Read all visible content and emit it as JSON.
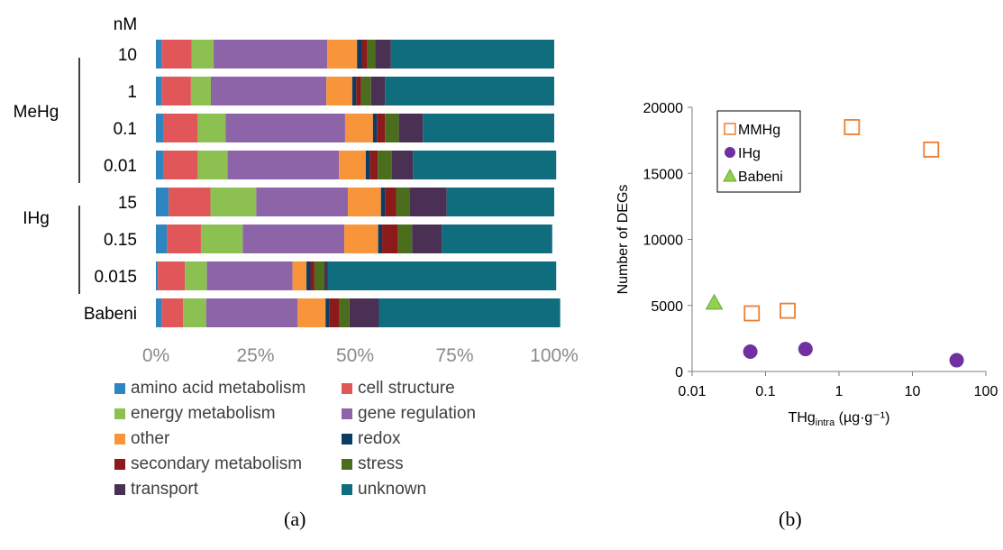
{
  "panels": {
    "a_label": "(a)",
    "b_label": "(b)"
  },
  "chart_data": [
    {
      "type": "bar",
      "orientation": "horizontal",
      "stacked": true,
      "percent": true,
      "unit_label": "nM",
      "groups": [
        {
          "name": "MeHg",
          "rows": [
            0,
            1,
            2,
            3
          ]
        },
        {
          "name": "IHg",
          "rows": [
            4,
            5,
            6
          ]
        }
      ],
      "categories": [
        "10",
        "1",
        "0.1",
        "0.01",
        "15",
        "0.15",
        "0.015",
        "Babeni"
      ],
      "xlim": [
        0,
        100
      ],
      "xticks": [
        "0%",
        "25%",
        "50%",
        "75%",
        "100%"
      ],
      "legend_position": "bottom",
      "series": [
        {
          "name": "amino acid metabolism",
          "color": "#2e86c1",
          "values": [
            1.5,
            1.5,
            2.0,
            2.0,
            3.2,
            2.8,
            0.5,
            1.5
          ]
        },
        {
          "name": "cell structure",
          "color": "#e15759",
          "values": [
            7.5,
            7.3,
            8.5,
            8.5,
            10.5,
            8.5,
            6.8,
            5.3
          ]
        },
        {
          "name": "energy metabolism",
          "color": "#8cc152",
          "values": [
            5.5,
            5.0,
            7.0,
            7.5,
            11.5,
            10.5,
            5.5,
            5.8
          ]
        },
        {
          "name": "gene regulation",
          "color": "#8e64a8",
          "values": [
            28.5,
            29.0,
            30.0,
            28.0,
            23.0,
            25.5,
            21.5,
            23.0
          ]
        },
        {
          "name": "other",
          "color": "#f8953b",
          "values": [
            7.5,
            6.5,
            7.0,
            6.7,
            8.3,
            8.5,
            3.5,
            7.0
          ]
        },
        {
          "name": "redox",
          "color": "#0c3c63",
          "values": [
            1.2,
            1.0,
            1.0,
            1.0,
            1.0,
            1.0,
            1.0,
            1.0
          ]
        },
        {
          "name": "secondary metabolism",
          "color": "#8b1a1a",
          "values": [
            1.4,
            1.2,
            2.0,
            2.0,
            2.8,
            4.0,
            1.0,
            2.5
          ]
        },
        {
          "name": "stress",
          "color": "#4b6e1d",
          "values": [
            2.0,
            2.5,
            3.5,
            3.5,
            3.5,
            3.5,
            2.5,
            2.5
          ]
        },
        {
          "name": "transport",
          "color": "#4a3053",
          "values": [
            3.9,
            3.5,
            6.0,
            5.3,
            9.2,
            7.5,
            0.9,
            7.4
          ]
        },
        {
          "name": "unknown",
          "color": "#0f6d7e",
          "values": [
            41.0,
            42.5,
            33.0,
            36.0,
            27.0,
            27.7,
            57.3,
            45.5
          ]
        }
      ]
    },
    {
      "type": "scatter",
      "xscale": "log",
      "xlim": [
        0.01,
        100
      ],
      "ylim": [
        0,
        20000
      ],
      "xticks": [
        "0.01",
        "0.1",
        "1",
        "10",
        "100"
      ],
      "yticks": [
        "0",
        "5000",
        "10000",
        "15000",
        "20000"
      ],
      "ylabel": "Number of DEGs",
      "xlabel_main": "THg",
      "xlabel_sub": "intra",
      "xlabel_unit": " (µg·g⁻¹)",
      "legend_position": "top-left",
      "series": [
        {
          "name": "MMHg",
          "marker": "square",
          "color": "#ed7d31",
          "filled": false,
          "x": [
            0.065,
            0.2,
            1.5,
            18
          ],
          "y": [
            4400,
            4600,
            18500,
            16800
          ]
        },
        {
          "name": "IHg",
          "marker": "circle",
          "color": "#7030a0",
          "filled": true,
          "x": [
            0.062,
            0.35,
            40
          ],
          "y": [
            1500,
            1700,
            850
          ]
        },
        {
          "name": "Babeni",
          "marker": "triangle",
          "color": "#92d050",
          "filled": true,
          "x": [
            0.02
          ],
          "y": [
            5200
          ]
        }
      ]
    }
  ]
}
